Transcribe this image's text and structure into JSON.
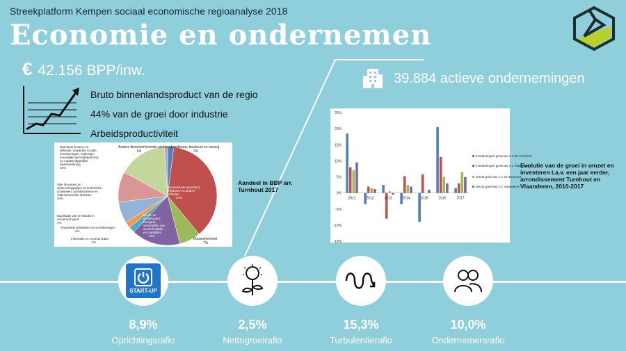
{
  "header": {
    "subtitle": "Streekplatform Kempen sociaal economische regioanalyse 2018",
    "title": "Economie en ondernemen"
  },
  "bpp": {
    "currency": "€",
    "value": "42.156 BPP/inw."
  },
  "enterprises": {
    "value": "39.884 actieve ondernemingen"
  },
  "bullets": [
    "Bruto binnenlandsproduct van de regio",
    "44% van de  groei door industrie",
    "Arbeidsproductiviteit"
  ],
  "pie_caption": "Aandeel in BBP  arr. Turnhout 2017",
  "bar_caption": "Evolutie van de groei in omzet en investeren t.a.v. een jaar eerder, arrondissement Turnhout en Vlaanderen, 2010-2017",
  "pie_labels": {
    "l1": "Landbouw, bosbouw en visserij",
    "l1p": "2%",
    "l2": "Andere dienstverlenende activiteiten",
    "l2p": "1%",
    "l3": "Openbaar bestuur en defensie; verplichte sociale verzekeringen; onderwijs; menselijke gezondheidszorg en maatschappelijke dienstverlening",
    "l3p": "16%",
    "l4": "Vrije beroepen en wetenschappelijke en technische activiteiten; administratieve en ondersteunende diensten",
    "l4p": "10%",
    "l5": "Exploitatie van en handel in onroerend goed",
    "l5p": "7%",
    "l6": "Financiële activiteiten en verzekeringen",
    "l6p": "2%",
    "l7": "Informatie en communicatie",
    "l7p": "2%",
    "l8": "Verwerkende nijverheid; mijnbouw en andere industrie",
    "l8p": "37%",
    "l9": "Groot- en detailhandel, transport, verschaffen van accommodatie en maaltijden",
    "l9p": "16%",
    "l10": "Bouwnijverheid",
    "l10p": "7%"
  },
  "chart_data": [
    {
      "type": "pie",
      "title": "Aandeel in BBP  arr. Turnhout 2017",
      "slices": [
        {
          "label": "Landbouw, bosbouw en visserij",
          "value": 2,
          "color": "#4f81bd"
        },
        {
          "label": "Verwerkende nijverheid; mijnbouw en andere industrie",
          "value": 37,
          "color": "#c0504d"
        },
        {
          "label": "Bouwnijverheid",
          "value": 7,
          "color": "#9bbb59"
        },
        {
          "label": "Groot- en detailhandel, transport, verschaffen van accommodatie en maaltijden",
          "value": 16,
          "color": "#8064a2"
        },
        {
          "label": "Informatie en communicatie",
          "value": 2,
          "color": "#4bacc6"
        },
        {
          "label": "Financiële activiteiten en verzekeringen",
          "value": 2,
          "color": "#f79646"
        },
        {
          "label": "Exploitatie van en handel in onroerend goed",
          "value": 7,
          "color": "#95b3d7"
        },
        {
          "label": "Vrije beroepen en wetenschappelijke en technische activiteiten; administratieve en ondersteunende diensten",
          "value": 10,
          "color": "#d99694"
        },
        {
          "label": "Openbaar bestuur en defensie; verplichte sociale verzekeringen; onderwijs; menselijke gezondheidszorg en maatschappelijke dienstverlening",
          "value": 16,
          "color": "#c3d69b"
        },
        {
          "label": "Andere dienstverlenende activiteiten",
          "value": 1,
          "color": "#b3a2c7"
        }
      ]
    },
    {
      "type": "bar",
      "categories": [
        "2011",
        "2012",
        "2013",
        "2014",
        "2015",
        "2016",
        "2017"
      ],
      "series": [
        {
          "name": "Investeringen groei tav x-1 arr.Turnhout",
          "color": "#4f81bd",
          "values": [
            18.5,
            -3.5,
            2.5,
            -3.5,
            -9,
            20.5,
            1.5
          ]
        },
        {
          "name": "Investeringen groei tav x-1 Vlaanderen",
          "color": "#c0504d",
          "values": [
            8,
            2,
            -8,
            5.2,
            5.8,
            11.2,
            3
          ]
        },
        {
          "name": "omzet groei tav x-1 arr.Turnhout",
          "color": "#9bbb59",
          "values": [
            7,
            1.5,
            0.5,
            2.5,
            0,
            5,
            6.5
          ]
        },
        {
          "name": "omzet groei tav x-1 Vlaanderen",
          "color": "#8064a2",
          "values": [
            9.5,
            1.2,
            -0.5,
            2,
            1,
            3,
            5
          ]
        }
      ],
      "ylim": [
        -15,
        25
      ],
      "yticks": [
        "25%",
        "20%",
        "15%",
        "10%",
        "5%",
        "0%",
        "-5%",
        "-10%",
        "-15%"
      ]
    }
  ],
  "stats": [
    {
      "value": "8,9%",
      "label": "Oprichtingsrafio",
      "icon_text": "START-UP"
    },
    {
      "value": "2,5%",
      "label": "Nettogroeirafio"
    },
    {
      "value": "15,3%",
      "label": "Turbulentierafio"
    },
    {
      "value": "10,0%",
      "label": "Ondernemersrafio"
    }
  ]
}
